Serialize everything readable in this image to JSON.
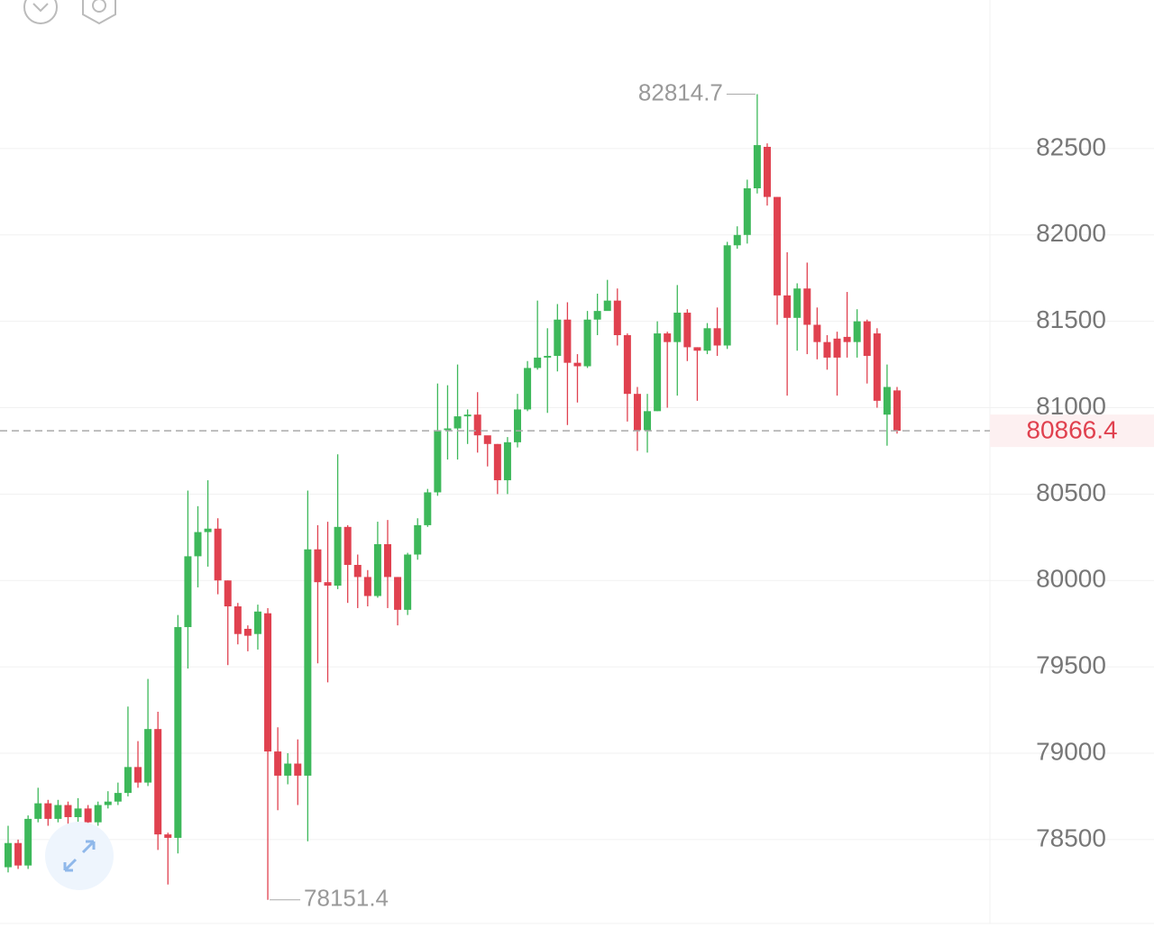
{
  "chart_data": {
    "type": "candlestick",
    "up_color": "#3db85a",
    "down_color": "#e0414f",
    "grid": true,
    "ylim": [
      78030,
      83360
    ],
    "yticks": [
      78500,
      79000,
      79500,
      80000,
      80500,
      81000,
      81500,
      82000,
      82500
    ],
    "open": [
      78340,
      78480,
      78350,
      78620,
      78710,
      78620,
      78700,
      78630,
      78680,
      78600,
      78700,
      78720,
      78770,
      78920,
      78830,
      79140,
      78530,
      78510,
      79730,
      80140,
      80280,
      80300,
      80000,
      79850,
      79720,
      79690,
      79810,
      79010,
      78870,
      78940,
      78870,
      80180,
      79990,
      79970,
      80310,
      80090,
      80020,
      79910,
      80210,
      80020,
      79830,
      80150,
      80320,
      80510,
      80870,
      80880,
      80950,
      80960,
      80840,
      80790,
      80580,
      80800,
      80990,
      81230,
      81290,
      81300,
      81510,
      81260,
      81240,
      81510,
      81560,
      81620,
      81420,
      81080,
      80870,
      80980,
      81430,
      81380,
      81550,
      81350,
      81330,
      81460,
      81360,
      81940,
      82000,
      82270,
      82510,
      82220,
      81650,
      81520,
      81690,
      81480,
      81380,
      81400,
      81410,
      81380,
      81500,
      81430,
      80960,
      81100
    ],
    "high": [
      78580,
      78500,
      78640,
      78800,
      78730,
      78730,
      78720,
      78740,
      78700,
      78720,
      78780,
      78830,
      79270,
      79070,
      79430,
      79240,
      78540,
      79800,
      80520,
      80430,
      80580,
      80360,
      80000,
      79870,
      79740,
      79860,
      79840,
      79150,
      79000,
      79080,
      80520,
      80320,
      80340,
      80730,
      80320,
      80150,
      80060,
      80340,
      80350,
      80020,
      80160,
      80360,
      80530,
      81140,
      81130,
      81250,
      80990,
      81090,
      80830,
      80790,
      80830,
      81080,
      81270,
      81620,
      81460,
      81600,
      81610,
      81310,
      81560,
      81660,
      81740,
      81690,
      81430,
      81120,
      81080,
      81500,
      81440,
      81710,
      81570,
      81350,
      81490,
      81580,
      81960,
      82050,
      82320,
      82814.7,
      82530,
      82220,
      81900,
      81720,
      81840,
      81580,
      81420,
      81440,
      81670,
      81570,
      81510,
      81460,
      81250,
      81120
    ],
    "low": [
      78310,
      78330,
      78330,
      78600,
      78580,
      78600,
      78590,
      78560,
      78520,
      78580,
      78680,
      78700,
      78750,
      78800,
      78810,
      78440,
      78240,
      78420,
      79490,
      79960,
      80080,
      79920,
      79510,
      79630,
      79590,
      79600,
      78151.4,
      78670,
      78820,
      78700,
      78490,
      79520,
      79410,
      79950,
      79870,
      79840,
      79850,
      79900,
      79840,
      79740,
      79800,
      80120,
      80310,
      80490,
      80700,
      80700,
      80790,
      80740,
      80660,
      80500,
      80500,
      80770,
      80980,
      81220,
      80970,
      81210,
      80900,
      81030,
      81230,
      81420,
      81570,
      81360,
      80920,
      80750,
      80740,
      80980,
      81000,
      81070,
      81270,
      81040,
      81310,
      81300,
      81340,
      81920,
      81950,
      82240,
      82170,
      81480,
      81070,
      81330,
      81310,
      81280,
      81220,
      81070,
      81290,
      81290,
      81140,
      81000,
      80780,
      80850
    ],
    "close": [
      78480,
      78350,
      78620,
      78710,
      78620,
      78700,
      78630,
      78680,
      78600,
      78700,
      78720,
      78770,
      78920,
      78830,
      79140,
      78530,
      78510,
      79730,
      80140,
      80280,
      80300,
      80000,
      79850,
      79690,
      79680,
      79820,
      79010,
      78870,
      78940,
      78870,
      80180,
      79990,
      79970,
      80310,
      80090,
      80020,
      79910,
      80210,
      80020,
      79830,
      80150,
      80320,
      80510,
      80870,
      80880,
      80950,
      80960,
      80840,
      80790,
      80580,
      80800,
      80990,
      81230,
      81290,
      81300,
      81510,
      81260,
      81240,
      81510,
      81560,
      81620,
      81420,
      81080,
      80870,
      80980,
      81430,
      81380,
      81550,
      81350,
      81330,
      81460,
      81360,
      81940,
      82000,
      82270,
      82520,
      82220,
      81650,
      81520,
      81690,
      81480,
      81380,
      81290,
      81290,
      81380,
      81500,
      81300,
      81040,
      81120,
      80866.4
    ]
  }
}
